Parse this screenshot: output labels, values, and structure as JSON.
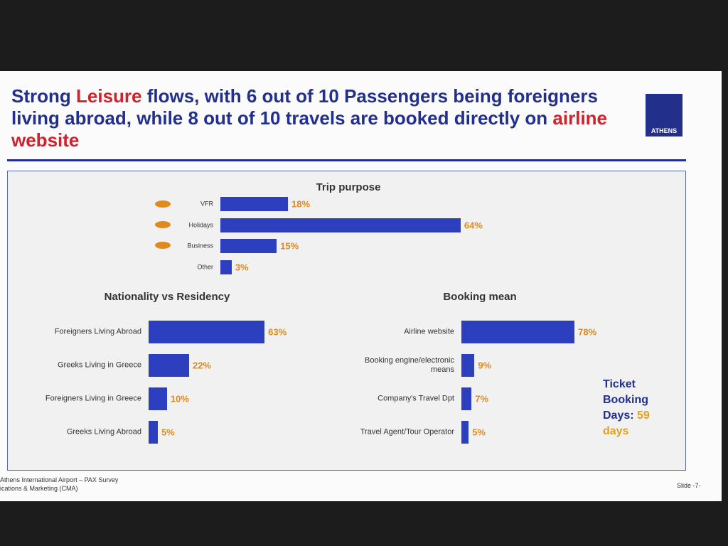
{
  "slide": {
    "title_parts": [
      "Strong ",
      "Leisure",
      " flows, with 6 out of  10 Passengers being foreigners living abroad, while 8 out of 10 travels are booked directly on ",
      "airline website"
    ],
    "logo": "ATHENS",
    "note_parts": [
      "Ticket Booking Days:",
      "59 days"
    ],
    "footer": [
      "Athens International Airport – PAX Survey",
      "ications & Marketing (CMA)"
    ],
    "slide_number": "Slide -7-"
  },
  "chart_data": [
    {
      "type": "bar",
      "orientation": "horizontal",
      "title": "Trip purpose",
      "color": "#2b3fbf",
      "categories": [
        "VFR",
        "Holidays",
        "Business",
        "Other"
      ],
      "values": [
        18,
        64,
        15,
        3
      ],
      "value_labels": [
        "18%",
        "64%",
        "15%",
        "3%"
      ]
    },
    {
      "type": "bar",
      "orientation": "horizontal",
      "title": "Nationality vs Residency",
      "color": "#2b3fbf",
      "categories": [
        "Foreigners Living Abroad",
        "Greeks Living in Greece",
        "Foreigners Living in Greece",
        "Greeks Living Abroad"
      ],
      "values": [
        63,
        22,
        10,
        5
      ],
      "value_labels": [
        "63%",
        "22%",
        "10%",
        "5%"
      ]
    },
    {
      "type": "bar",
      "orientation": "horizontal",
      "title": "Booking mean",
      "color": "#2b3fbf",
      "categories": [
        "Airline website",
        "Booking engine/electronic means",
        "Company's Travel Dpt",
        "Travel Agent/Tour Operator"
      ],
      "values": [
        78,
        9,
        7,
        5
      ],
      "value_labels": [
        "78%",
        "9%",
        "7%",
        "5%"
      ]
    }
  ]
}
